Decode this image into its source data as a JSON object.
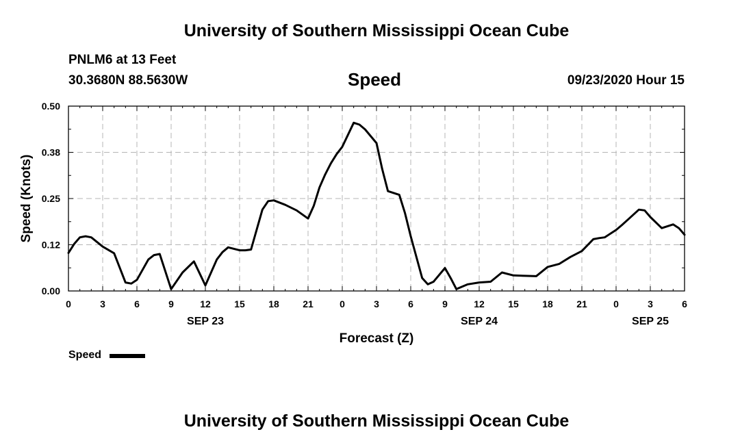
{
  "header": {
    "top_title": "University of Southern Mississippi Ocean Cube",
    "station_line": "PNLM6 at 13 Feet",
    "coords_line": "30.3680N 88.5630W",
    "chart_title": "Speed",
    "datetime": "09/23/2020 Hour 15",
    "bottom_title": "University of Southern Mississippi Ocean Cube"
  },
  "legend": {
    "label": "Speed",
    "color": "#000000"
  },
  "chart_data": {
    "type": "line",
    "title": "Speed",
    "xlabel": "Forecast (Z)",
    "ylabel": "Speed (Knots)",
    "xlim": [
      0,
      54
    ],
    "ylim": [
      0,
      0.5
    ],
    "yticks": [
      "0.00",
      "0.12",
      "0.25",
      "0.38",
      "0.50"
    ],
    "xticks": [
      "0",
      "3",
      "6",
      "9",
      "12",
      "15",
      "18",
      "21",
      "0",
      "3",
      "6",
      "9",
      "12",
      "15",
      "18",
      "21",
      "0",
      "3",
      "6"
    ],
    "date_labels": [
      {
        "label": "SEP 23",
        "hour": 12
      },
      {
        "label": "SEP 24",
        "hour": 36
      },
      {
        "label": "SEP 25",
        "hour": 51
      }
    ],
    "grid": true,
    "series": [
      {
        "name": "Speed",
        "color": "#000000",
        "x": [
          0,
          0.5,
          1,
          1.5,
          2,
          3,
          4,
          5,
          5.5,
          6,
          7,
          7.5,
          8,
          9,
          10,
          11,
          12,
          13,
          13.5,
          14,
          15,
          15.5,
          16,
          17,
          17.5,
          18,
          19,
          20,
          21,
          21.5,
          22,
          22.5,
          23,
          23.5,
          24,
          25,
          25.5,
          26,
          27,
          27.5,
          28,
          29,
          29.5,
          30,
          31,
          31.5,
          32,
          33,
          33.5,
          34,
          35,
          36,
          37,
          38,
          39,
          40,
          41,
          42,
          43,
          44,
          45,
          46,
          46.5,
          47,
          48,
          48.5,
          49,
          50,
          50.5,
          51,
          52,
          53,
          53.5,
          54
        ],
        "y": [
          0.103,
          0.127,
          0.145,
          0.148,
          0.145,
          0.12,
          0.102,
          0.023,
          0.02,
          0.03,
          0.085,
          0.097,
          0.1,
          0.005,
          0.05,
          0.08,
          0.015,
          0.085,
          0.105,
          0.118,
          0.11,
          0.11,
          0.112,
          0.22,
          0.243,
          0.245,
          0.233,
          0.218,
          0.196,
          0.23,
          0.28,
          0.315,
          0.345,
          0.37,
          0.39,
          0.455,
          0.45,
          0.437,
          0.4,
          0.33,
          0.27,
          0.26,
          0.21,
          0.148,
          0.035,
          0.018,
          0.025,
          0.062,
          0.035,
          0.005,
          0.018,
          0.023,
          0.025,
          0.05,
          0.042,
          0.041,
          0.04,
          0.065,
          0.073,
          0.092,
          0.108,
          0.14,
          0.143,
          0.145,
          0.165,
          0.178,
          0.192,
          0.22,
          0.218,
          0.2,
          0.17,
          0.18,
          0.17,
          0.152
        ]
      }
    ]
  }
}
